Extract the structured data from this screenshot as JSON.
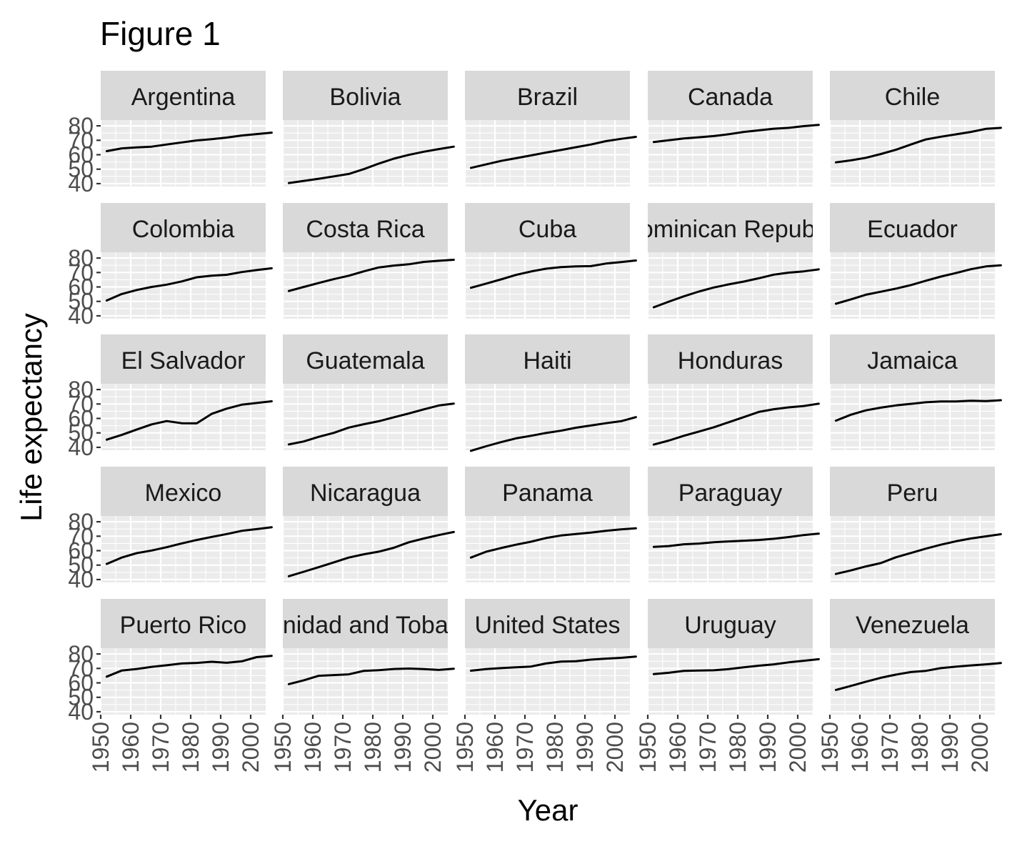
{
  "chart_data": {
    "type": "line",
    "title": "Figure 1",
    "xlabel": "Year",
    "ylabel": "Life expectancy",
    "x_ticks": [
      1950,
      1960,
      1970,
      1980,
      1990,
      2000
    ],
    "y_ticks": [
      40,
      50,
      60,
      70,
      80
    ],
    "xlim": [
      1950,
      2005
    ],
    "ylim": [
      38,
      84
    ],
    "grid": true,
    "facet": "wrap",
    "ncol": 5,
    "x": [
      1952,
      1957,
      1962,
      1967,
      1972,
      1977,
      1982,
      1987,
      1992,
      1997,
      2002,
      2007
    ],
    "series": [
      {
        "name": "Argentina",
        "label": "Argentina",
        "values": [
          62.5,
          64.4,
          65.1,
          65.6,
          67.1,
          68.5,
          69.9,
          70.8,
          71.9,
          73.3,
          74.3,
          75.3
        ]
      },
      {
        "name": "Bolivia",
        "label": "Bolivia",
        "values": [
          40.4,
          41.9,
          43.4,
          45.0,
          46.7,
          50.0,
          53.9,
          57.3,
          59.9,
          62.1,
          63.9,
          65.6
        ]
      },
      {
        "name": "Brazil",
        "label": "Brazil",
        "values": [
          50.9,
          53.3,
          55.7,
          57.6,
          59.5,
          61.5,
          63.3,
          65.2,
          67.1,
          69.4,
          71.0,
          72.4
        ]
      },
      {
        "name": "Canada",
        "label": "Canada",
        "values": [
          68.8,
          70.0,
          71.3,
          72.1,
          72.9,
          74.2,
          75.8,
          76.9,
          78.0,
          78.6,
          79.8,
          80.7
        ]
      },
      {
        "name": "Chile",
        "label": "Chile",
        "values": [
          54.7,
          56.1,
          57.9,
          60.5,
          63.4,
          67.1,
          70.6,
          72.5,
          74.1,
          75.8,
          77.9,
          78.6
        ]
      },
      {
        "name": "Colombia",
        "label": "Colombia",
        "values": [
          50.6,
          55.1,
          57.9,
          60.0,
          61.6,
          63.8,
          66.7,
          67.8,
          68.4,
          70.3,
          71.7,
          72.9
        ]
      },
      {
        "name": "Costa Rica",
        "label": "Costa Rica",
        "values": [
          57.2,
          60.0,
          62.8,
          65.4,
          67.8,
          70.8,
          73.5,
          74.8,
          75.7,
          77.3,
          78.1,
          78.8
        ]
      },
      {
        "name": "Cuba",
        "label": "Cuba",
        "values": [
          59.4,
          62.3,
          65.2,
          68.3,
          70.7,
          72.6,
          73.7,
          74.2,
          74.4,
          76.2,
          77.2,
          78.3
        ]
      },
      {
        "name": "Dominican Republic",
        "label": "Dominican Republic",
        "values": [
          45.9,
          49.8,
          53.5,
          56.8,
          59.6,
          61.8,
          63.7,
          66.0,
          68.5,
          69.9,
          70.8,
          72.2
        ]
      },
      {
        "name": "Ecuador",
        "label": "Ecuador",
        "values": [
          48.4,
          51.4,
          54.6,
          56.7,
          58.8,
          61.3,
          64.3,
          67.2,
          69.6,
          72.3,
          74.2,
          75.0
        ]
      },
      {
        "name": "El Salvador",
        "label": "El Salvador",
        "values": [
          45.3,
          48.6,
          52.3,
          55.9,
          58.2,
          56.7,
          56.6,
          63.2,
          66.8,
          69.5,
          70.7,
          71.9
        ]
      },
      {
        "name": "Guatemala",
        "label": "Guatemala",
        "values": [
          42.0,
          44.1,
          47.3,
          50.0,
          53.7,
          56.0,
          58.1,
          60.8,
          63.4,
          66.3,
          68.98,
          70.3
        ]
      },
      {
        "name": "Haiti",
        "label": "Haiti",
        "values": [
          37.6,
          40.7,
          43.6,
          46.2,
          48.0,
          49.9,
          51.5,
          53.6,
          55.1,
          56.7,
          58.1,
          60.9
        ]
      },
      {
        "name": "Honduras",
        "label": "Honduras",
        "values": [
          41.9,
          44.7,
          48.0,
          50.9,
          53.9,
          57.4,
          60.9,
          64.5,
          66.4,
          67.7,
          68.6,
          70.2
        ]
      },
      {
        "name": "Jamaica",
        "label": "Jamaica",
        "values": [
          58.5,
          62.6,
          65.6,
          67.5,
          69.0,
          70.1,
          71.2,
          71.8,
          71.8,
          72.3,
          72.0,
          72.6
        ]
      },
      {
        "name": "Mexico",
        "label": "Mexico",
        "values": [
          50.8,
          55.2,
          58.3,
          60.1,
          62.4,
          65.0,
          67.4,
          69.5,
          71.5,
          73.7,
          74.9,
          76.2
        ]
      },
      {
        "name": "Nicaragua",
        "label": "Nicaragua",
        "values": [
          42.3,
          45.4,
          48.6,
          51.9,
          55.2,
          57.5,
          59.3,
          62.0,
          65.8,
          68.4,
          70.8,
          72.9
        ]
      },
      {
        "name": "Panama",
        "label": "Panama",
        "values": [
          55.2,
          59.2,
          61.8,
          64.1,
          66.2,
          68.7,
          70.5,
          71.5,
          72.5,
          73.7,
          74.7,
          75.5
        ]
      },
      {
        "name": "Paraguay",
        "label": "Paraguay",
        "values": [
          62.6,
          63.2,
          64.4,
          64.9,
          65.8,
          66.4,
          66.9,
          67.4,
          68.2,
          69.4,
          70.8,
          71.8
        ]
      },
      {
        "name": "Peru",
        "label": "Peru",
        "values": [
          43.9,
          46.3,
          49.1,
          51.4,
          55.4,
          58.4,
          61.4,
          64.1,
          66.5,
          68.4,
          69.9,
          71.4
        ]
      },
      {
        "name": "Puerto Rico",
        "label": "Puerto Rico",
        "values": [
          64.3,
          68.5,
          69.6,
          71.1,
          72.2,
          73.4,
          73.8,
          74.6,
          73.9,
          74.9,
          77.8,
          78.7
        ]
      },
      {
        "name": "Trinidad and Tobago",
        "label": "Trinidad and Tobago",
        "values": [
          59.1,
          61.8,
          64.9,
          65.4,
          65.9,
          68.3,
          68.8,
          69.6,
          69.9,
          69.5,
          68.98,
          69.8
        ]
      },
      {
        "name": "United States",
        "label": "United States",
        "values": [
          68.4,
          69.5,
          70.2,
          70.8,
          71.3,
          73.4,
          74.7,
          75.0,
          76.1,
          76.8,
          77.3,
          78.2
        ]
      },
      {
        "name": "Uruguay",
        "label": "Uruguay",
        "values": [
          66.1,
          67.0,
          68.3,
          68.5,
          68.7,
          69.5,
          70.8,
          71.9,
          72.8,
          74.2,
          75.3,
          76.4
        ]
      },
      {
        "name": "Venezuela",
        "label": "Venezuela",
        "values": [
          55.1,
          57.9,
          60.8,
          63.5,
          65.7,
          67.5,
          68.3,
          70.2,
          71.2,
          72.1,
          72.8,
          73.7
        ]
      }
    ]
  }
}
